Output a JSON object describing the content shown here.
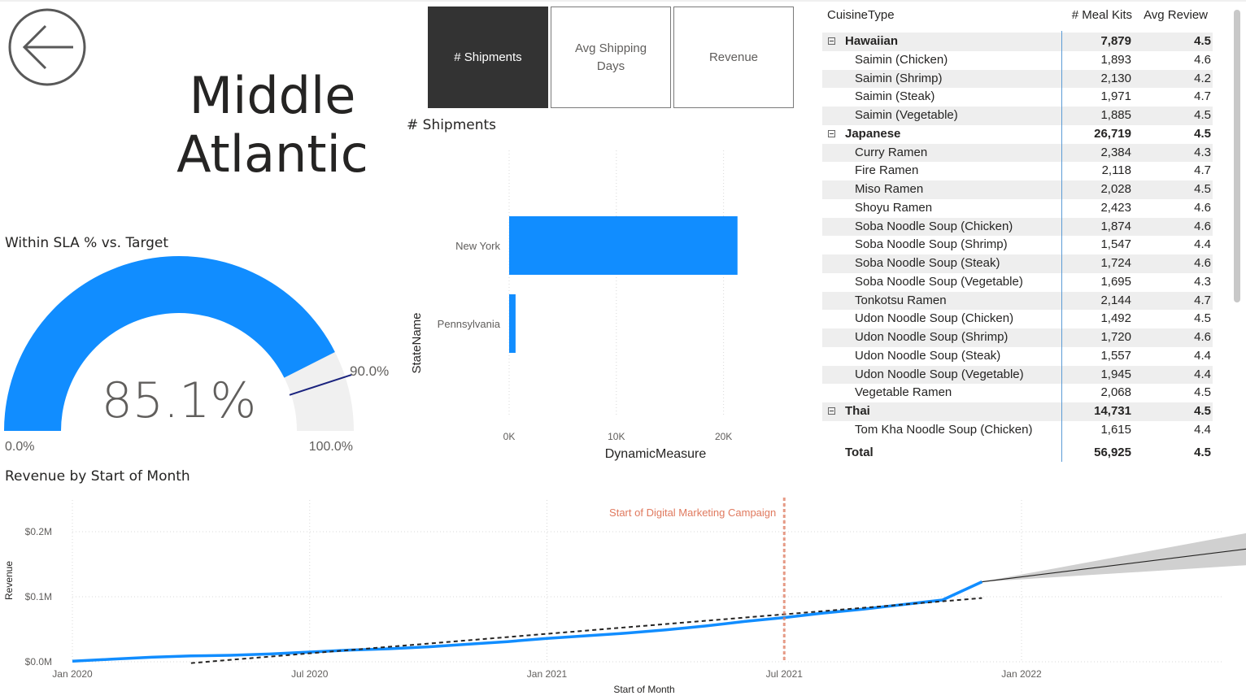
{
  "region_title_line1": "Middle",
  "region_title_line2": "Atlantic",
  "measure_buttons": [
    {
      "label": "# Shipments",
      "active": true
    },
    {
      "label": "Avg Shipping Days",
      "active": false
    },
    {
      "label": "Revenue",
      "active": false
    }
  ],
  "gauge": {
    "title": "Within SLA % vs. Target",
    "value_label": "85.1%",
    "value": 85.1,
    "target": 90.0,
    "target_label": "90.0%",
    "min_label": "0.0%",
    "max_label": "100.0%",
    "min": 0,
    "max": 100,
    "fill_color": "#118dff",
    "track_color": "#f0f0f0",
    "target_color": "#1a237e"
  },
  "table": {
    "headers": {
      "cuisine": "CuisineType",
      "kits": "# Meal Kits",
      "review": "Avg Review"
    },
    "rows": [
      {
        "group": true,
        "name": "Hawaiian",
        "kits": "7,879",
        "review": "4.5"
      },
      {
        "group": false,
        "name": "Saimin (Chicken)",
        "kits": "1,893",
        "review": "4.6"
      },
      {
        "group": false,
        "name": "Saimin (Shrimp)",
        "kits": "2,130",
        "review": "4.2"
      },
      {
        "group": false,
        "name": "Saimin (Steak)",
        "kits": "1,971",
        "review": "4.7"
      },
      {
        "group": false,
        "name": "Saimin (Vegetable)",
        "kits": "1,885",
        "review": "4.5"
      },
      {
        "group": true,
        "name": "Japanese",
        "kits": "26,719",
        "review": "4.5"
      },
      {
        "group": false,
        "name": "Curry Ramen",
        "kits": "2,384",
        "review": "4.3"
      },
      {
        "group": false,
        "name": "Fire Ramen",
        "kits": "2,118",
        "review": "4.7"
      },
      {
        "group": false,
        "name": "Miso Ramen",
        "kits": "2,028",
        "review": "4.5"
      },
      {
        "group": false,
        "name": "Shoyu Ramen",
        "kits": "2,423",
        "review": "4.6"
      },
      {
        "group": false,
        "name": "Soba Noodle Soup (Chicken)",
        "kits": "1,874",
        "review": "4.6"
      },
      {
        "group": false,
        "name": "Soba Noodle Soup (Shrimp)",
        "kits": "1,547",
        "review": "4.4"
      },
      {
        "group": false,
        "name": "Soba Noodle Soup (Steak)",
        "kits": "1,724",
        "review": "4.6"
      },
      {
        "group": false,
        "name": "Soba Noodle Soup (Vegetable)",
        "kits": "1,695",
        "review": "4.3"
      },
      {
        "group": false,
        "name": "Tonkotsu Ramen",
        "kits": "2,144",
        "review": "4.7"
      },
      {
        "group": false,
        "name": "Udon Noodle Soup (Chicken)",
        "kits": "1,492",
        "review": "4.5"
      },
      {
        "group": false,
        "name": "Udon Noodle Soup (Shrimp)",
        "kits": "1,720",
        "review": "4.6"
      },
      {
        "group": false,
        "name": "Udon Noodle Soup (Steak)",
        "kits": "1,557",
        "review": "4.4"
      },
      {
        "group": false,
        "name": "Udon Noodle Soup (Vegetable)",
        "kits": "1,945",
        "review": "4.4"
      },
      {
        "group": false,
        "name": "Vegetable Ramen",
        "kits": "2,068",
        "review": "4.5"
      },
      {
        "group": true,
        "name": "Thai",
        "kits": "14,731",
        "review": "4.5"
      },
      {
        "group": false,
        "name": "Tom Kha Noodle Soup (Chicken)",
        "kits": "1,615",
        "review": "4.4"
      }
    ],
    "total": {
      "name": "Total",
      "kits": "56,925",
      "review": "4.5"
    }
  },
  "chart_data": [
    {
      "type": "bar",
      "orientation": "horizontal",
      "title": "# Shipments",
      "categories": [
        "New York",
        "Pennsylvania"
      ],
      "values": [
        21300,
        600
      ],
      "xlabel": "DynamicMeasure",
      "ylabel": "StateName",
      "xlim": [
        0,
        22000
      ],
      "xticks": [
        0,
        10000,
        20000
      ],
      "xtick_labels": [
        "0K",
        "10K",
        "20K"
      ],
      "grid": true,
      "bar_color": "#118dff"
    },
    {
      "type": "line",
      "title": "Revenue by Start of Month",
      "xlabel": "Start of Month",
      "ylabel": "Revenue",
      "xtick_labels": [
        "Jan 2020",
        "Jul 2020",
        "Jan 2021",
        "Jul 2021",
        "Jan 2022"
      ],
      "xtick_dates": [
        "2020-01",
        "2020-07",
        "2021-01",
        "2021-07",
        "2022-01"
      ],
      "ytick_labels": [
        "$0.0M",
        "$0.1M",
        "$0.2M"
      ],
      "yticks": [
        0,
        0.1,
        0.2
      ],
      "ylim": [
        0,
        0.2
      ],
      "grid": true,
      "series": [
        {
          "name": "Revenue",
          "color": "#118dff",
          "x": [
            "2020-01",
            "2020-02",
            "2020-03",
            "2020-04",
            "2020-05",
            "2020-06",
            "2020-07",
            "2020-08",
            "2020-09",
            "2020-10",
            "2020-11",
            "2020-12",
            "2021-01",
            "2021-02",
            "2021-03",
            "2021-04",
            "2021-05",
            "2021-06",
            "2021-07",
            "2021-08",
            "2021-09",
            "2021-10",
            "2021-11",
            "2021-12"
          ],
          "values": [
            0.001,
            0.004,
            0.007,
            0.009,
            0.01,
            0.012,
            0.015,
            0.018,
            0.02,
            0.023,
            0.027,
            0.031,
            0.036,
            0.04,
            0.044,
            0.049,
            0.055,
            0.062,
            0.068,
            0.075,
            0.081,
            0.088,
            0.095,
            0.123
          ]
        },
        {
          "name": "Trend",
          "style": "dashed",
          "color": "#252423",
          "x": [
            "2020-04",
            "2021-12"
          ],
          "values": [
            -0.002,
            0.098
          ]
        },
        {
          "name": "Forecast",
          "color": "#252423",
          "x": [
            "2021-12",
            "2022-11"
          ],
          "values": [
            0.123,
            0.206
          ],
          "band_upper": [
            0.123,
            0.246
          ],
          "band_lower": [
            0.123,
            0.165
          ],
          "band_color": "#d0d0d0"
        }
      ],
      "annotations": [
        {
          "label": "Start of Digital Marketing Campaign",
          "x": "2021-07",
          "color": "#e07a5f",
          "style": "dashed"
        }
      ]
    }
  ]
}
